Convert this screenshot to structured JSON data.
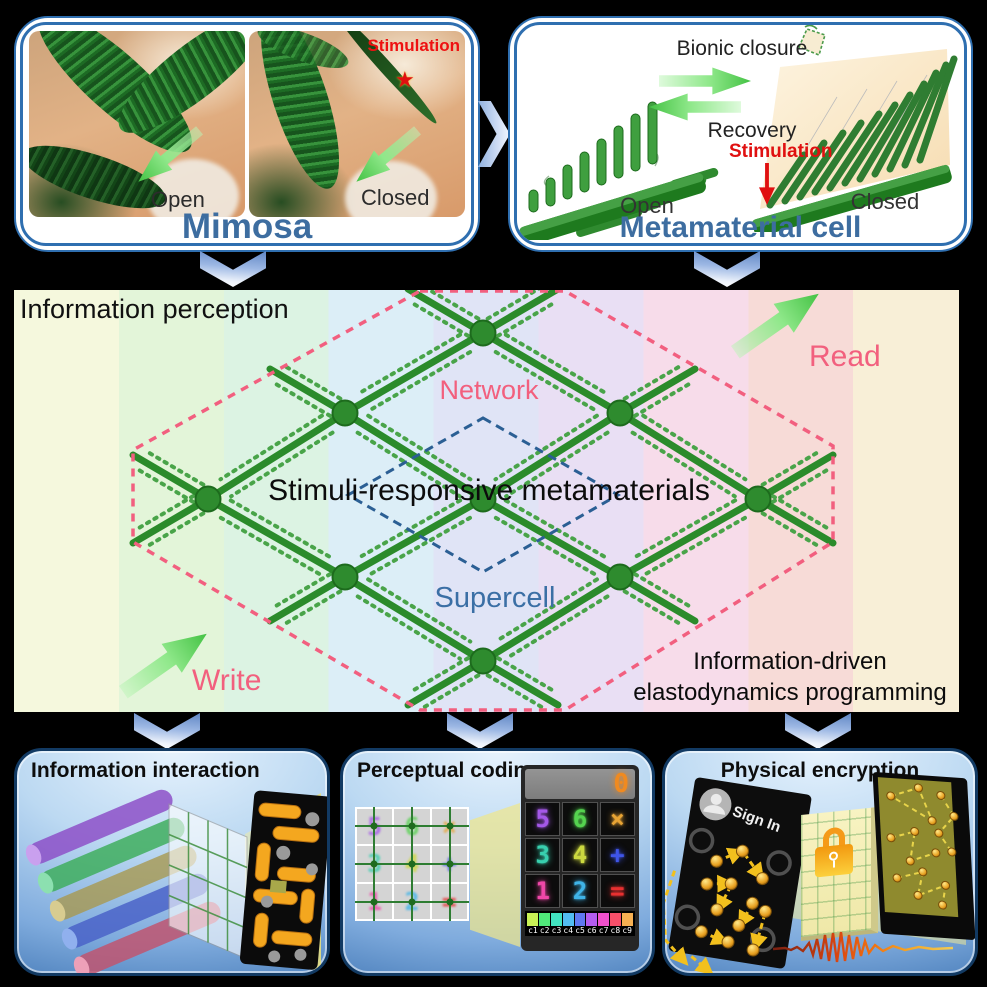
{
  "mimosa": {
    "title": "Mimosa",
    "open": "Open",
    "closed": "Closed",
    "stimulation": "Stimulation",
    "star": "★"
  },
  "cell": {
    "title": "Metamaterial cell",
    "closure": "Bionic closure",
    "recovery": "Recovery",
    "stimulation": "Stimulation",
    "open": "Open",
    "closed": "Closed"
  },
  "middle": {
    "perception": "Information perception",
    "network": "Network",
    "supercell": "Supercell",
    "center": "Stimuli-responsive metamaterials",
    "read": "Read",
    "write": "Write",
    "prog1": "Information-driven",
    "prog2": "elastodynamics programming",
    "accent_pink": "#f2607e",
    "accent_blue": "#3b6fa5"
  },
  "interaction": {
    "title": "Information interaction"
  },
  "perceptual": {
    "title": "Perceptual coding",
    "result": "0",
    "result_color": "#f08a20",
    "cells": [
      [
        "5",
        "6",
        "×"
      ],
      [
        "3",
        "4",
        "+"
      ],
      [
        "1",
        "2",
        "="
      ]
    ],
    "cell_colors": [
      [
        "#a458e8",
        "#55d34f",
        "#e8a434"
      ],
      [
        "#38cfae",
        "#ccd93f",
        "#3f55e8"
      ],
      [
        "#ef47a8",
        "#3fb4e8",
        "#e83030"
      ]
    ],
    "colorbar": [
      {
        "label": "c1",
        "color": "#c8f055"
      },
      {
        "label": "c2",
        "color": "#50e87a"
      },
      {
        "label": "c3",
        "color": "#42e3c0"
      },
      {
        "label": "c4",
        "color": "#52bdf2"
      },
      {
        "label": "c5",
        "color": "#5f78f2"
      },
      {
        "label": "c6",
        "color": "#b45cf0"
      },
      {
        "label": "c7",
        "color": "#f050cc"
      },
      {
        "label": "c8",
        "color": "#f64f6a"
      },
      {
        "label": "c9",
        "color": "#f6b052"
      }
    ]
  },
  "encryption": {
    "title": "Physical encryption",
    "signin": "Sign In"
  }
}
